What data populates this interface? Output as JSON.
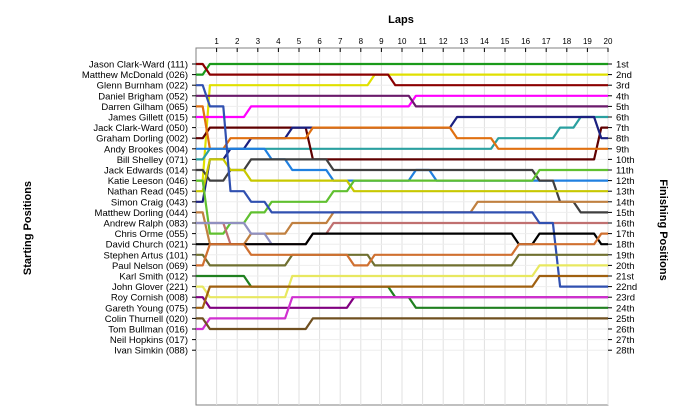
{
  "chart_data": {
    "type": "line",
    "title": "Laps",
    "ylabel_left": "Starting Positions",
    "ylabel_right": "Finishing Positions",
    "x_ticks": [
      "1",
      "2",
      "3",
      "4",
      "5",
      "6",
      "7",
      "8",
      "9",
      "10",
      "11",
      "12",
      "13",
      "14",
      "15",
      "16",
      "17",
      "18",
      "19",
      "20"
    ],
    "positions": [
      "1st",
      "2nd",
      "3rd",
      "4th",
      "5th",
      "6th",
      "7th",
      "8th",
      "9th",
      "10th",
      "11th",
      "12th",
      "13th",
      "14th",
      "15th",
      "16th",
      "17th",
      "18th",
      "19th",
      "20th",
      "21st",
      "22nd",
      "23rd",
      "24th",
      "25th",
      "26th",
      "27th",
      "28th"
    ],
    "grid": true,
    "series": [
      {
        "name": "Jason Clark-Ward (111)",
        "color": "#1a9a1a",
        "values": [
          2,
          1,
          1,
          1,
          1,
          1,
          1,
          1,
          1,
          1,
          1,
          1,
          1,
          1,
          1,
          1,
          1,
          1,
          1,
          1,
          1
        ]
      },
      {
        "name": "Matthew McDonald (026)",
        "color": "#e0e000",
        "values": [
          12,
          3,
          3,
          3,
          3,
          3,
          3,
          3,
          3,
          2,
          2,
          2,
          2,
          2,
          2,
          2,
          2,
          2,
          2,
          2,
          2
        ]
      },
      {
        "name": "Glenn Burnham (022)",
        "color": "#8b0000",
        "values": [
          1,
          2,
          2,
          2,
          2,
          2,
          2,
          2,
          2,
          2,
          3,
          3,
          3,
          3,
          3,
          3,
          3,
          3,
          3,
          3,
          3
        ]
      },
      {
        "name": "Daniel Brigham (052)",
        "color": "#ff00ff",
        "values": [
          6,
          6,
          6,
          5,
          5,
          5,
          5,
          5,
          5,
          5,
          5,
          4,
          4,
          4,
          4,
          4,
          4,
          4,
          4,
          4,
          4
        ]
      },
      {
        "name": "Darren Gilham (065)",
        "color": "#6b1a6b",
        "values": [
          4,
          4,
          4,
          4,
          4,
          4,
          4,
          4,
          4,
          4,
          4,
          5,
          5,
          5,
          5,
          5,
          5,
          5,
          5,
          5,
          5
        ]
      },
      {
        "name": "James Gillett (015)",
        "color": "#2aa0a0",
        "values": [
          10,
          9,
          9,
          9,
          9,
          9,
          9,
          9,
          9,
          9,
          9,
          9,
          9,
          9,
          9,
          8,
          8,
          8,
          7,
          6,
          6
        ]
      },
      {
        "name": "Jack Clark-Ward (050)",
        "color": "#600000",
        "values": [
          8,
          7,
          7,
          7,
          7,
          7,
          10,
          10,
          10,
          10,
          10,
          10,
          10,
          10,
          10,
          10,
          10,
          10,
          10,
          10,
          7
        ]
      },
      {
        "name": "Graham Dorling (002)",
        "color": "#1a2080",
        "values": [
          14,
          10,
          9,
          8,
          8,
          7,
          7,
          7,
          7,
          7,
          7,
          7,
          7,
          6,
          6,
          6,
          6,
          6,
          6,
          6,
          8
        ]
      },
      {
        "name": "Andy Brookes (004)",
        "color": "#e07010",
        "values": [
          5,
          9,
          8,
          8,
          8,
          8,
          7,
          7,
          7,
          7,
          7,
          7,
          7,
          8,
          8,
          9,
          9,
          9,
          9,
          9,
          9
        ]
      },
      {
        "name": "Bill Shelley (071)",
        "color": "#2080e0",
        "values": [
          9,
          9,
          9,
          9,
          10,
          11,
          11,
          12,
          12,
          12,
          12,
          11,
          12,
          12,
          12,
          12,
          12,
          12,
          12,
          12,
          12
        ]
      },
      {
        "name": "Jack Edwards (014)",
        "color": "#404040",
        "values": [
          11,
          12,
          11,
          10,
          10,
          10,
          10,
          11,
          11,
          11,
          11,
          11,
          11,
          11,
          11,
          11,
          11,
          12,
          14,
          15,
          15
        ]
      },
      {
        "name": "Katie Leeson (046)",
        "color": "#c8c800",
        "values": [
          13,
          10,
          11,
          12,
          12,
          12,
          12,
          12,
          13,
          13,
          13,
          13,
          13,
          13,
          13,
          13,
          13,
          13,
          13,
          13,
          13
        ]
      },
      {
        "name": "Nathan Read (045)",
        "color": "#60c030",
        "values": [
          12,
          17,
          16,
          15,
          14,
          14,
          14,
          13,
          12,
          12,
          12,
          12,
          12,
          12,
          12,
          12,
          12,
          11,
          11,
          11,
          11
        ]
      },
      {
        "name": "Simon Craig (043)",
        "color": "#c07070",
        "values": [
          16,
          16,
          18,
          18,
          18,
          18,
          17,
          16,
          16,
          16,
          16,
          16,
          16,
          16,
          16,
          16,
          16,
          16,
          16,
          16,
          16
        ]
      },
      {
        "name": "Matthew Dorling (044)",
        "color": "#c08040",
        "values": [
          15,
          18,
          18,
          17,
          17,
          16,
          16,
          15,
          15,
          15,
          15,
          15,
          15,
          15,
          14,
          14,
          14,
          14,
          14,
          14,
          14
        ]
      },
      {
        "name": "Andrew Ralph (083)",
        "color": "#9090c0",
        "values": [
          16,
          16,
          16,
          17,
          18,
          null,
          null,
          null,
          null,
          null,
          null,
          null,
          null,
          null,
          null,
          null,
          null,
          null,
          null,
          null,
          null
        ]
      },
      {
        "name": "Chris Orme (055)",
        "color": "#3050b0",
        "values": [
          3,
          5,
          13,
          14,
          15,
          15,
          15,
          15,
          15,
          15,
          15,
          15,
          15,
          15,
          15,
          15,
          15,
          16,
          22,
          22,
          22
        ]
      },
      {
        "name": "David Church (021)",
        "color": "#000000",
        "values": [
          18,
          18,
          18,
          18,
          18,
          18,
          17,
          17,
          17,
          17,
          17,
          17,
          17,
          17,
          17,
          17,
          18,
          17,
          17,
          17,
          18
        ]
      },
      {
        "name": "Stephen Artus (101)",
        "color": "#707030",
        "values": [
          19,
          20,
          20,
          20,
          20,
          19,
          19,
          19,
          19,
          20,
          20,
          20,
          20,
          20,
          20,
          20,
          19,
          19,
          19,
          19,
          19
        ]
      },
      {
        "name": "Paul Nelson (069)",
        "color": "#d07030",
        "values": [
          20,
          18,
          18,
          19,
          19,
          19,
          19,
          19,
          20,
          19,
          19,
          19,
          19,
          19,
          19,
          19,
          18,
          18,
          18,
          18,
          17
        ]
      },
      {
        "name": "Karl Smith (012)",
        "color": "#208020",
        "values": [
          21,
          21,
          21,
          22,
          22,
          22,
          22,
          22,
          22,
          22,
          23,
          24,
          24,
          24,
          24,
          24,
          24,
          24,
          24,
          24,
          24
        ]
      },
      {
        "name": "John Glover (221)",
        "color": "#e8e860",
        "values": [
          22,
          23,
          23,
          23,
          23,
          21,
          21,
          21,
          21,
          21,
          21,
          21,
          21,
          21,
          21,
          21,
          21,
          20,
          20,
          20,
          20
        ]
      },
      {
        "name": "Roy Cornish (008)",
        "color": "#800080",
        "values": [
          23,
          24,
          24,
          24,
          24,
          24,
          24,
          24,
          23,
          23,
          23,
          23,
          23,
          23,
          23,
          23,
          23,
          23,
          23,
          23,
          23
        ]
      },
      {
        "name": "Gareth Young (075)",
        "color": "#a06010",
        "values": [
          24,
          22,
          22,
          22,
          22,
          22,
          22,
          22,
          22,
          22,
          22,
          22,
          22,
          22,
          22,
          22,
          22,
          21,
          21,
          21,
          21
        ]
      },
      {
        "name": "Colin Thurnell (020)",
        "color": "#d030d0",
        "values": [
          26,
          25,
          25,
          25,
          25,
          23,
          23,
          23,
          23,
          23,
          23,
          23,
          23,
          23,
          23,
          23,
          23,
          23,
          23,
          23,
          23
        ]
      },
      {
        "name": "Tom Bullman (016)",
        "color": "#705020",
        "values": [
          25,
          26,
          26,
          26,
          26,
          26,
          25,
          25,
          25,
          25,
          25,
          25,
          25,
          25,
          25,
          25,
          25,
          25,
          25,
          25,
          25
        ]
      }
    ]
  }
}
